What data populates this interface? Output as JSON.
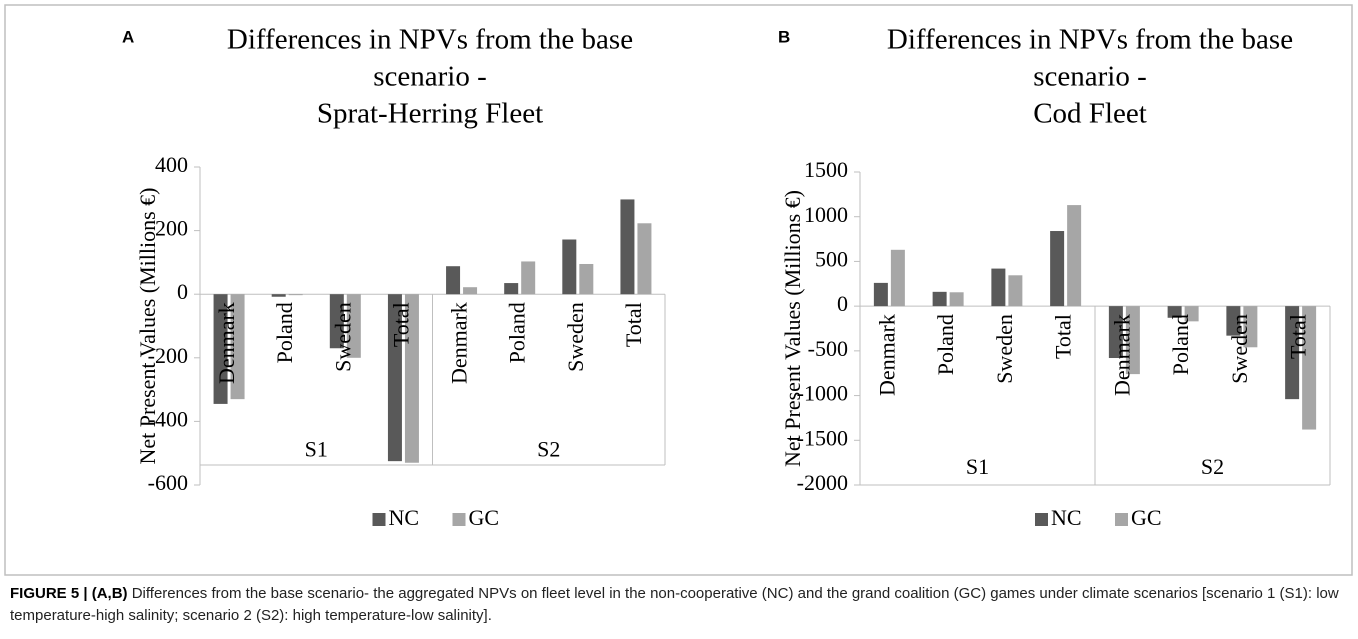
{
  "chart_data": [
    {
      "type": "bar",
      "panel": "A",
      "title": [
        "Differences in NPVs from the base",
        "scenario -",
        "Sprat-Herring Fleet"
      ],
      "y_label": "Net Present Values (Millions €)",
      "groups": [
        "S1",
        "S2"
      ],
      "categories": [
        "Denmark",
        "Poland",
        "Sweden",
        "Total",
        "Denmark",
        "Poland",
        "Sweden",
        "Total"
      ],
      "series": [
        {
          "name": "NC",
          "color": "#595959",
          "values": [
            -345,
            -8,
            -170,
            -525,
            88,
            35,
            172,
            298
          ]
        },
        {
          "name": "GC",
          "color": "#a6a6a6",
          "values": [
            -330,
            -3,
            -200,
            -530,
            22,
            103,
            95,
            223
          ]
        }
      ],
      "ylim": [
        -600,
        400
      ],
      "yticks": [
        -600,
        -400,
        -200,
        0,
        200,
        400
      ],
      "grid": false,
      "legend": "bottom"
    },
    {
      "type": "bar",
      "panel": "B",
      "title": [
        "Differences in NPVs from the base",
        "scenario -",
        "Cod Fleet"
      ],
      "y_label": "Net Present Values (Millions €)",
      "groups": [
        "S1",
        "S2"
      ],
      "categories": [
        "Denmark",
        "Poland",
        "Sweden",
        "Total",
        "Denmark",
        "Poland",
        "Sweden",
        "Total"
      ],
      "series": [
        {
          "name": "NC",
          "color": "#595959",
          "values": [
            260,
            160,
            420,
            840,
            -580,
            -130,
            -330,
            -1040
          ]
        },
        {
          "name": "GC",
          "color": "#a6a6a6",
          "values": [
            630,
            155,
            345,
            1130,
            -760,
            -170,
            -460,
            -1380
          ]
        }
      ],
      "ylim": [
        -2000,
        1500
      ],
      "yticks": [
        -2000,
        -1500,
        -1000,
        -500,
        0,
        500,
        1000,
        1500
      ],
      "grid": false,
      "legend": "bottom"
    }
  ],
  "caption": {
    "label": "FIGURE 5 | (A,B)",
    "text": "Differences from the base scenario- the aggregated NPVs on fleet level in the non-cooperative (NC) and the grand coalition (GC) games under climate scenarios [scenario 1 (S1): low temperature-high salinity; scenario 2 (S2): high temperature-low salinity]."
  }
}
